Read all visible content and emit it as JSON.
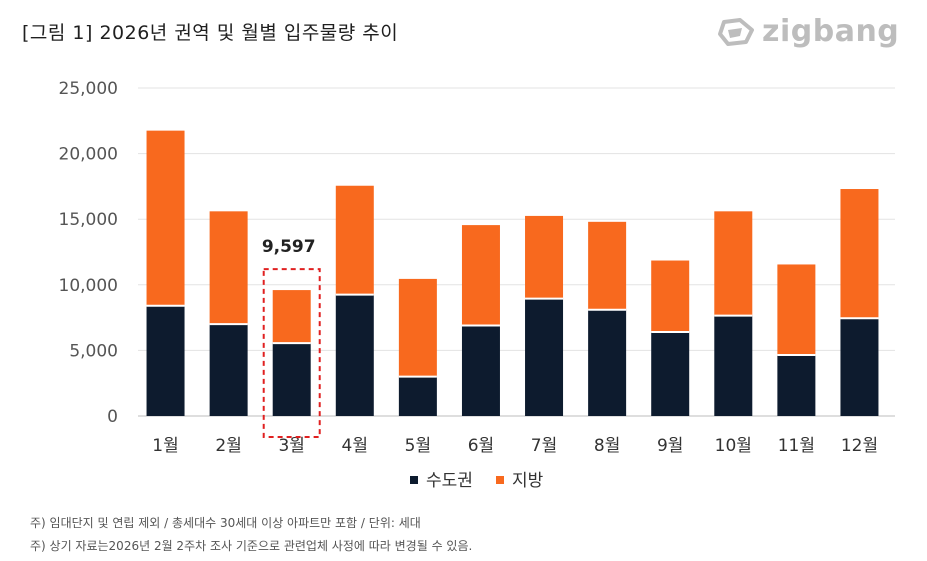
{
  "title": "[그림 1] 2026년 권역 및 월별 입주물량 추이",
  "logo": {
    "text": "zigbang",
    "icon": "zigbang-logo-icon"
  },
  "chart_data": {
    "type": "bar",
    "stacked": true,
    "categories": [
      "1월",
      "2월",
      "3월",
      "4월",
      "5월",
      "6월",
      "7월",
      "8월",
      "9월",
      "10월",
      "11월",
      "12월"
    ],
    "series": [
      {
        "name": "수도권",
        "color": "#0d1b2e",
        "values": [
          8400,
          7000,
          5550,
          9250,
          3000,
          6900,
          8950,
          8100,
          6400,
          7650,
          4650,
          7450
        ]
      },
      {
        "name": "지방",
        "color": "#f8691e",
        "values": [
          13350,
          8600,
          4047,
          8300,
          7450,
          7650,
          6300,
          6700,
          5450,
          7950,
          6900,
          9850
        ]
      }
    ],
    "y_ticks": [
      "25,000",
      "20,000",
      "15,000",
      "10,000",
      "5,000",
      "0"
    ],
    "ylim": [
      0,
      25000
    ],
    "highlight": {
      "category": "3월",
      "label": "9,597",
      "style": "dashed-red-box"
    },
    "legend_position": "bottom-center"
  },
  "notes": [
    "주) 임대단지 및 연립 제외 / 총세대수 30세대 이상 아파트만 포함 / 단위: 세대",
    "주) 상기 자료는2026년 2월 2주차 조사 기준으로 관련업체 사정에 따라 변경될 수 있음."
  ]
}
